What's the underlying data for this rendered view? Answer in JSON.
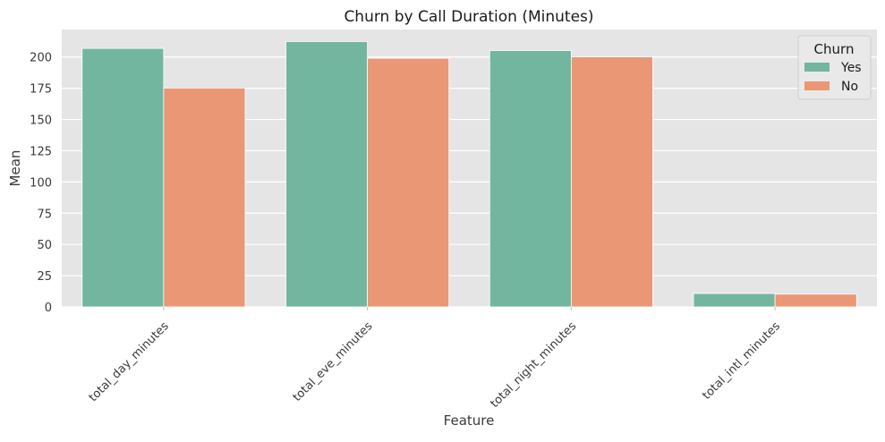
{
  "chart_data": {
    "type": "bar",
    "title": "Churn by Call Duration (Minutes)",
    "xlabel": "Feature",
    "ylabel": "Mean",
    "categories": [
      "total_day_minutes",
      "total_eve_minutes",
      "total_night_minutes",
      "total_intl_minutes"
    ],
    "series": [
      {
        "name": "Yes",
        "color": "#73b6a0",
        "values": [
          206.9,
          212.4,
          205.2,
          10.7
        ]
      },
      {
        "name": "No",
        "color": "#e99775",
        "values": [
          175.2,
          199.0,
          200.1,
          10.2
        ]
      }
    ],
    "ylim": [
      0,
      222
    ],
    "yticks": [
      0,
      25,
      50,
      75,
      100,
      125,
      150,
      175,
      200
    ],
    "grid": true,
    "background": "#e5e5e5",
    "legend": {
      "title": "Churn",
      "placement": "top-right"
    }
  }
}
